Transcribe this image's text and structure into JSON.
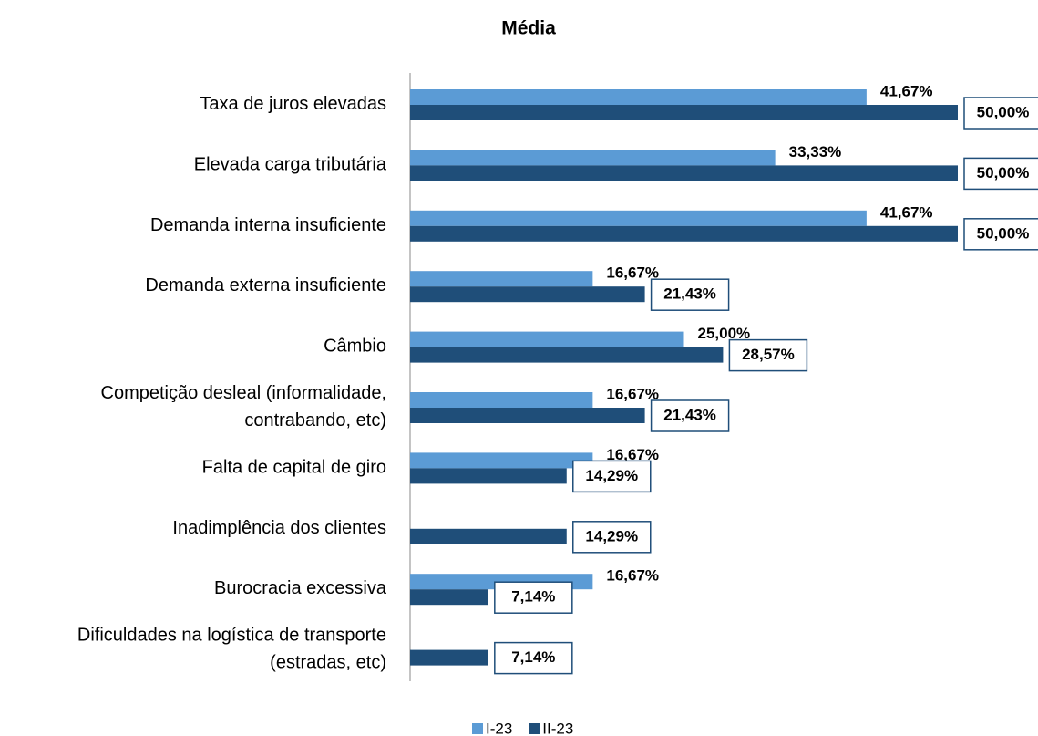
{
  "chart_data": {
    "type": "hbar",
    "title": "Média",
    "categories": [
      "Taxa de juros elevadas",
      "Elevada carga tributária",
      "Demanda interna insuficiente",
      "Demanda externa insuficiente",
      "Câmbio",
      "Competição desleal (informalidade, contrabando, etc)",
      "Falta de capital de giro",
      "Inadimplência dos clientes",
      "Burocracia excessiva",
      "Dificuldades na logística de transporte (estradas, etc)"
    ],
    "series": [
      {
        "name": "I-23",
        "color": "#5b9bd5",
        "values": [
          41.67,
          33.33,
          41.67,
          16.67,
          25.0,
          16.67,
          16.67,
          null,
          16.67,
          null
        ],
        "value_labels": [
          "41,67%",
          "33,33%",
          "41,67%",
          "16,67%",
          "25,00%",
          "16,67%",
          "16,67%",
          null,
          "16,67%",
          null
        ]
      },
      {
        "name": "II-23",
        "color": "#1f4e79",
        "values": [
          50.0,
          50.0,
          50.0,
          21.43,
          28.57,
          21.43,
          14.29,
          14.29,
          7.14,
          7.14
        ],
        "value_labels": [
          "50,00%",
          "50,00%",
          "50,00%",
          "21,43%",
          "28,57%",
          "21,43%",
          "14,29%",
          "14,29%",
          "7,14%",
          "7,14%"
        ]
      }
    ],
    "xlim": [
      0,
      50
    ]
  }
}
